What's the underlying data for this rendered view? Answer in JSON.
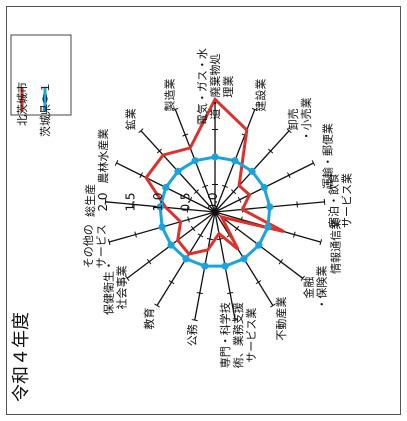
{
  "caption": "令和４年度",
  "legend": [
    {
      "label": "北茨城市",
      "color": "#e0302c"
    },
    {
      "label": "茨城県＝１",
      "color": "#1aa3dc"
    }
  ],
  "chart_data": {
    "type": "radar",
    "categories": [
      [
        "建設業"
      ],
      [
        "卸売",
        "・小売業"
      ],
      [
        "運輸・郵便業"
      ],
      [
        "宿泊・飲食",
        "サービス業"
      ],
      [
        "情報通信業"
      ],
      [
        "金融",
        "・保険業"
      ],
      [
        "不動産業"
      ],
      [
        "専門・科学技",
        "術、業務支援",
        "サービス業"
      ],
      [
        "公務"
      ],
      [
        "教育"
      ],
      [
        "保健衛生・",
        "社会事業"
      ],
      [
        "その他の",
        "サービス"
      ],
      [
        "総生産"
      ],
      [
        "農林水産業"
      ],
      [
        "鉱業"
      ],
      [
        "製造業"
      ],
      [
        "電気・ガス・水",
        "道・廃棄物処",
        "理業"
      ]
    ],
    "series": [
      {
        "name": "北茨城市",
        "values": [
          1.6,
          0.65,
          0.7,
          0.5,
          1.3,
          0.15,
          0.8,
          0.4,
          0.7,
          0.9,
          0.85,
          0.65,
          0.9,
          1.4,
          1.4,
          1.25,
          2.05
        ]
      },
      {
        "name": "茨城県＝１",
        "values": [
          1,
          1,
          1,
          1,
          1,
          1,
          1,
          1,
          1,
          1,
          1,
          1,
          1,
          1,
          1,
          1,
          1
        ]
      }
    ],
    "rlim": [
      0,
      2.0
    ],
    "ticks": [
      "0.0",
      "0.5",
      "1.0",
      "1.5",
      "2.0"
    ]
  }
}
